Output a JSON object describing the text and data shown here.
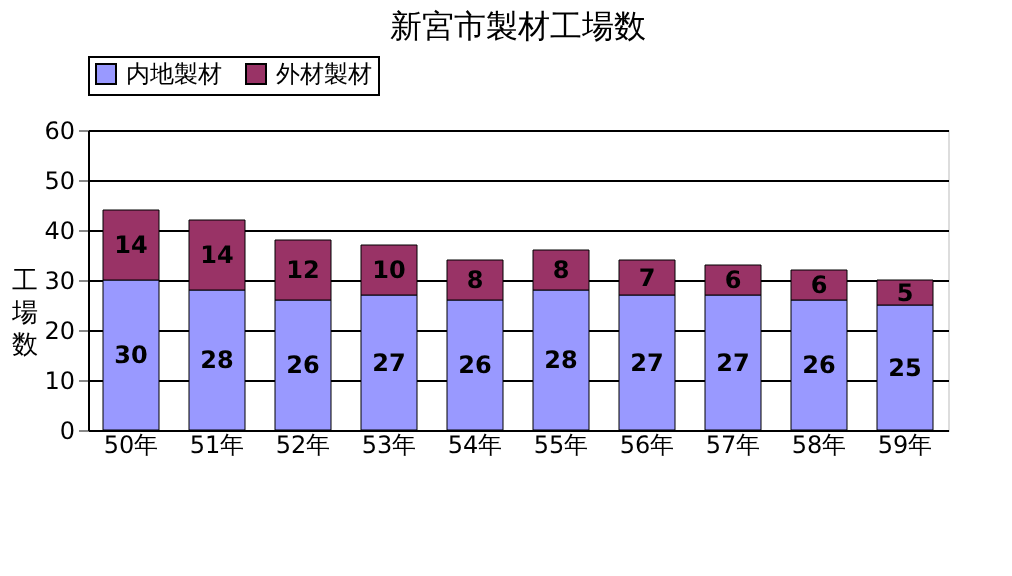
{
  "chart_data": {
    "type": "bar",
    "title": "新宮市製材工場数",
    "ylabel": "工場数",
    "categories": [
      "50年",
      "51年",
      "52年",
      "53年",
      "54年",
      "55年",
      "56年",
      "57年",
      "58年",
      "59年"
    ],
    "series": [
      {
        "name": "内地製材",
        "color": "#9999ff",
        "values": [
          30,
          28,
          26,
          27,
          26,
          28,
          27,
          27,
          26,
          25
        ]
      },
      {
        "name": "外材製材",
        "color": "#993366",
        "values": [
          14,
          14,
          12,
          10,
          8,
          8,
          7,
          6,
          6,
          5
        ]
      }
    ],
    "stacked": true,
    "ylim": [
      0,
      60
    ],
    "yticks": [
      0,
      10,
      20,
      30,
      40,
      50,
      60
    ],
    "grid": "y",
    "legend": "top",
    "data_labels": true
  }
}
